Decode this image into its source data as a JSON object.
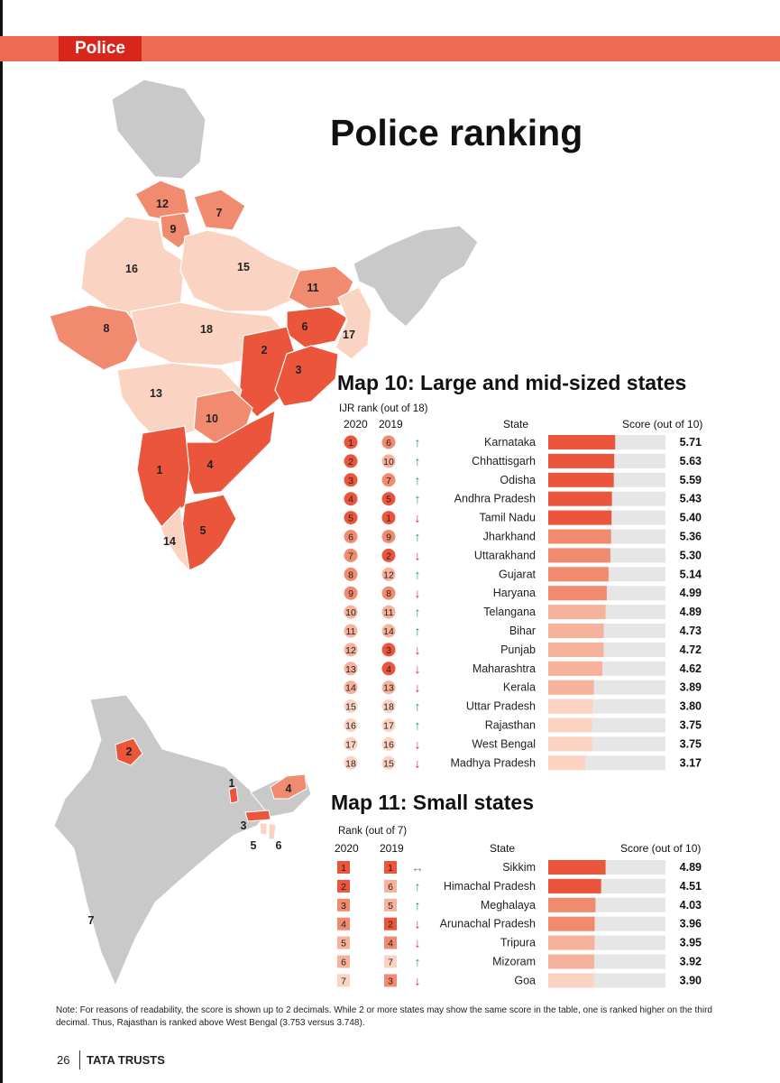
{
  "header": {
    "section": "Police"
  },
  "page_title": "Police ranking",
  "map10": {
    "title": "Map 10: Large and mid-sized states",
    "rank_label": "IJR rank (out of 18)",
    "col_2020": "2020",
    "col_2019": "2019",
    "col_state": "State",
    "col_score": "Score (out of 10)",
    "map_labels": [
      "12",
      "9",
      "7",
      "16",
      "15",
      "11",
      "8",
      "18",
      "6",
      "17",
      "2",
      "3",
      "13",
      "10",
      "1",
      "4",
      "14",
      "5"
    ]
  },
  "map11": {
    "title": "Map 11: Small states",
    "rank_label": "Rank (out of 7)",
    "col_2020": "2020",
    "col_2019": "2019",
    "col_state": "State",
    "col_score": "Score (out of 10)",
    "map_labels": [
      "2",
      "1",
      "4",
      "3",
      "5",
      "6",
      "7"
    ]
  },
  "chart_data": [
    {
      "type": "bar",
      "title": "Map 10: Large and mid-sized states",
      "xlabel": "",
      "ylabel": "Score (out of 10)",
      "ylim": [
        0,
        10
      ],
      "categories": [
        "Karnataka",
        "Chhattisgarh",
        "Odisha",
        "Andhra Pradesh",
        "Tamil Nadu",
        "Jharkhand",
        "Uttarakhand",
        "Gujarat",
        "Haryana",
        "Telangana",
        "Bihar",
        "Punjab",
        "Maharashtra",
        "Kerala",
        "Uttar Pradesh",
        "Rajasthan",
        "West Bengal",
        "Madhya Pradesh"
      ],
      "values": [
        5.71,
        5.63,
        5.59,
        5.43,
        5.4,
        5.36,
        5.3,
        5.14,
        4.99,
        4.89,
        4.73,
        4.72,
        4.62,
        3.89,
        3.8,
        3.75,
        3.75,
        3.17
      ],
      "value_labels": [
        "5.71",
        "5.63",
        "5.59",
        "5.43",
        "5.40",
        "5.36",
        "5.30",
        "5.14",
        "4.99",
        "4.89",
        "4.73",
        "4.72",
        "4.62",
        "3.89",
        "3.80",
        "3.75",
        "3.75",
        "3.17"
      ],
      "rank_2020": [
        "1",
        "2",
        "3",
        "4",
        "5",
        "6",
        "7",
        "8",
        "9",
        "10",
        "11",
        "12",
        "13",
        "14",
        "15",
        "16",
        "17",
        "18"
      ],
      "rank_2019": [
        "6",
        "10",
        "7",
        "5",
        "1",
        "9",
        "2",
        "12",
        "8",
        "11",
        "14",
        "3",
        "4",
        "13",
        "18",
        "17",
        "16",
        "15"
      ],
      "trend": [
        "up",
        "up",
        "up",
        "up",
        "down",
        "up",
        "down",
        "up",
        "down",
        "up",
        "up",
        "down",
        "down",
        "down",
        "up",
        "up",
        "down",
        "down"
      ]
    },
    {
      "type": "bar",
      "title": "Map 11: Small states",
      "xlabel": "",
      "ylabel": "Score (out of 10)",
      "ylim": [
        0,
        10
      ],
      "categories": [
        "Sikkim",
        "Himachal Pradesh",
        "Meghalaya",
        "Arunachal Pradesh",
        "Tripura",
        "Mizoram",
        "Goa"
      ],
      "values": [
        4.89,
        4.51,
        4.03,
        3.96,
        3.95,
        3.92,
        3.9
      ],
      "value_labels": [
        "4.89",
        "4.51",
        "4.03",
        "3.96",
        "3.95",
        "3.92",
        "3.90"
      ],
      "rank_2020": [
        "1",
        "2",
        "3",
        "4",
        "5",
        "6",
        "7"
      ],
      "rank_2019": [
        "1",
        "6",
        "5",
        "2",
        "4",
        "7",
        "3"
      ],
      "trend": [
        "same",
        "up",
        "up",
        "down",
        "down",
        "up",
        "down"
      ]
    }
  ],
  "colors": {
    "accent_bar": "#ee6a52",
    "tag": "#d9261c",
    "scale": [
      "#ea553c",
      "#f08b6f",
      "#f6b29a",
      "#fbd3c3"
    ],
    "track": "#e6e6e6",
    "up": "#1f9a4a",
    "down": "#d9264a",
    "land": "#c9c9c9"
  },
  "note": "Note: For reasons of readability, the score is shown up to 2 decimals. While 2 or more states may show the same score in the table, one is ranked higher on the third decimal. Thus, Rajasthan is ranked above West Bengal (3.753 versus 3.748).",
  "footer": {
    "page": "26",
    "brand": "TATA TRUSTS"
  }
}
